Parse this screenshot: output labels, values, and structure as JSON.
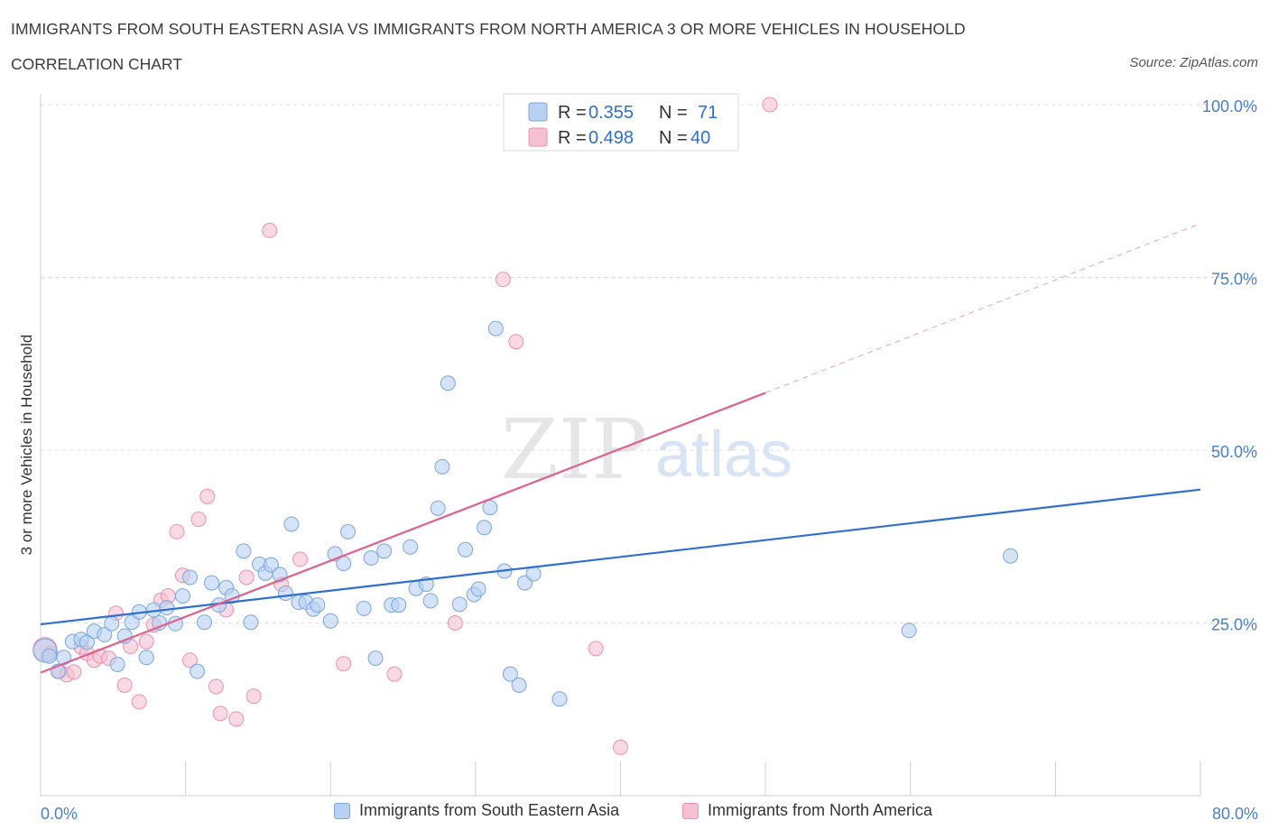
{
  "header": {
    "title": "IMMIGRANTS FROM SOUTH EASTERN ASIA VS IMMIGRANTS FROM NORTH AMERICA 3 OR MORE VEHICLES IN HOUSEHOLD",
    "subtitle": "CORRELATION CHART",
    "source": "Source: ZipAtlas.com"
  },
  "watermark": {
    "zip": "ZIP",
    "atlas": "atlas"
  },
  "colors": {
    "blue_fill": "#b8d0f2",
    "blue_stroke": "#7aa6e0",
    "blue_line": "#2f6fd0",
    "pink_fill": "#f5c0d0",
    "pink_stroke": "#eb90ae",
    "pink_line": "#e0608c",
    "tick_text": "#4a7fc7"
  },
  "legend_top": {
    "rows": [
      {
        "r_label": "R = ",
        "r_value": "0.355",
        "n_label": "N = ",
        "n_value": "71"
      },
      {
        "r_label": "R = ",
        "r_value": "0.498",
        "n_label": "N = ",
        "n_value": "40"
      }
    ]
  },
  "legend_bottom": [
    "Immigrants from South Eastern Asia",
    "Immigrants from North America"
  ],
  "chart_data": {
    "type": "scatter",
    "title": "IMMIGRANTS FROM SOUTH EASTERN ASIA VS IMMIGRANTS FROM NORTH AMERICA 3 OR MORE VEHICLES IN HOUSEHOLD",
    "xlabel": "",
    "ylabel": "3 or more Vehicles in Household",
    "xlim": [
      0,
      80
    ],
    "ylim": [
      0,
      100
    ],
    "x_tick_labels": [
      "0.0%",
      "80.0%"
    ],
    "y_ticks": [
      25,
      50,
      75,
      100
    ],
    "y_tick_labels": [
      "25.0%",
      "50.0%",
      "75.0%",
      "100.0%"
    ],
    "legend_position": "top-center",
    "series": [
      {
        "name": "Immigrants from South Eastern Asia",
        "color": "#7aa6e0",
        "R": 0.355,
        "N": 71,
        "trend": {
          "x0": 0,
          "y0": 24.8,
          "x1": 80,
          "y1": 44.3
        },
        "points": [
          [
            0.3,
            21.0
          ],
          [
            0.6,
            20.2
          ],
          [
            1.2,
            18.0
          ],
          [
            1.6,
            20.0
          ],
          [
            2.2,
            22.3
          ],
          [
            2.8,
            22.6
          ],
          [
            3.2,
            22.2
          ],
          [
            3.7,
            23.8
          ],
          [
            4.4,
            23.3
          ],
          [
            4.9,
            24.9
          ],
          [
            5.3,
            19.0
          ],
          [
            5.8,
            23.1
          ],
          [
            6.3,
            25.1
          ],
          [
            6.8,
            26.6
          ],
          [
            7.3,
            20.0
          ],
          [
            7.8,
            26.9
          ],
          [
            8.2,
            25.0
          ],
          [
            8.7,
            27.2
          ],
          [
            9.3,
            24.9
          ],
          [
            9.8,
            28.9
          ],
          [
            10.3,
            31.6
          ],
          [
            10.8,
            18.0
          ],
          [
            11.3,
            25.1
          ],
          [
            11.8,
            30.8
          ],
          [
            12.3,
            27.6
          ],
          [
            12.8,
            30.1
          ],
          [
            13.2,
            28.9
          ],
          [
            14.0,
            35.4
          ],
          [
            14.5,
            25.1
          ],
          [
            15.1,
            33.5
          ],
          [
            15.5,
            32.2
          ],
          [
            15.9,
            33.4
          ],
          [
            16.5,
            32.0
          ],
          [
            16.9,
            29.3
          ],
          [
            17.3,
            39.3
          ],
          [
            17.8,
            28.0
          ],
          [
            18.3,
            28.0
          ],
          [
            18.8,
            27.0
          ],
          [
            19.1,
            27.6
          ],
          [
            20.0,
            25.3
          ],
          [
            20.3,
            35.0
          ],
          [
            20.9,
            33.6
          ],
          [
            21.2,
            38.2
          ],
          [
            22.3,
            27.1
          ],
          [
            22.8,
            34.4
          ],
          [
            23.1,
            19.9
          ],
          [
            23.7,
            35.4
          ],
          [
            24.2,
            27.6
          ],
          [
            24.7,
            27.6
          ],
          [
            25.5,
            36.0
          ],
          [
            25.9,
            30.0
          ],
          [
            26.6,
            30.6
          ],
          [
            26.9,
            28.2
          ],
          [
            27.4,
            41.6
          ],
          [
            27.7,
            47.6
          ],
          [
            28.1,
            59.7
          ],
          [
            28.9,
            27.7
          ],
          [
            29.3,
            35.6
          ],
          [
            29.9,
            29.1
          ],
          [
            30.2,
            29.9
          ],
          [
            30.6,
            38.8
          ],
          [
            31.0,
            41.7
          ],
          [
            31.4,
            67.6
          ],
          [
            32.0,
            32.5
          ],
          [
            32.4,
            17.6
          ],
          [
            33.0,
            16.0
          ],
          [
            33.4,
            30.8
          ],
          [
            34.0,
            32.1
          ],
          [
            35.8,
            14.0
          ],
          [
            59.9,
            23.9
          ],
          [
            66.9,
            34.7
          ]
        ]
      },
      {
        "name": "Immigrants from North America",
        "color": "#eb90ae",
        "R": 0.498,
        "N": 40,
        "trend": {
          "x0": 0,
          "y0": 17.8,
          "x1": 50,
          "y1": 58.3,
          "dashed_x1": 80,
          "dashed_y1": 82.8
        },
        "points": [
          [
            0.3,
            21.2
          ],
          [
            0.7,
            20.6
          ],
          [
            1.3,
            18.0
          ],
          [
            1.8,
            17.5
          ],
          [
            2.3,
            17.9
          ],
          [
            2.8,
            21.5
          ],
          [
            3.2,
            20.6
          ],
          [
            3.7,
            19.6
          ],
          [
            4.1,
            20.2
          ],
          [
            4.7,
            19.9
          ],
          [
            5.2,
            26.4
          ],
          [
            5.8,
            16.0
          ],
          [
            6.2,
            21.6
          ],
          [
            6.8,
            13.6
          ],
          [
            7.3,
            22.3
          ],
          [
            7.8,
            24.7
          ],
          [
            8.3,
            28.3
          ],
          [
            8.8,
            28.9
          ],
          [
            9.4,
            38.2
          ],
          [
            9.8,
            31.9
          ],
          [
            10.3,
            19.6
          ],
          [
            10.9,
            40.0
          ],
          [
            11.5,
            43.3
          ],
          [
            12.1,
            15.8
          ],
          [
            12.4,
            11.9
          ],
          [
            12.8,
            26.9
          ],
          [
            13.5,
            11.1
          ],
          [
            14.2,
            31.6
          ],
          [
            14.7,
            14.4
          ],
          [
            15.8,
            81.8
          ],
          [
            16.6,
            30.6
          ],
          [
            17.9,
            34.2
          ],
          [
            20.9,
            19.1
          ],
          [
            24.4,
            17.6
          ],
          [
            28.6,
            25.0
          ],
          [
            31.9,
            74.7
          ],
          [
            32.8,
            65.7
          ],
          [
            38.3,
            21.3
          ],
          [
            40.0,
            7.0
          ],
          [
            50.3,
            100.0
          ]
        ]
      }
    ]
  }
}
